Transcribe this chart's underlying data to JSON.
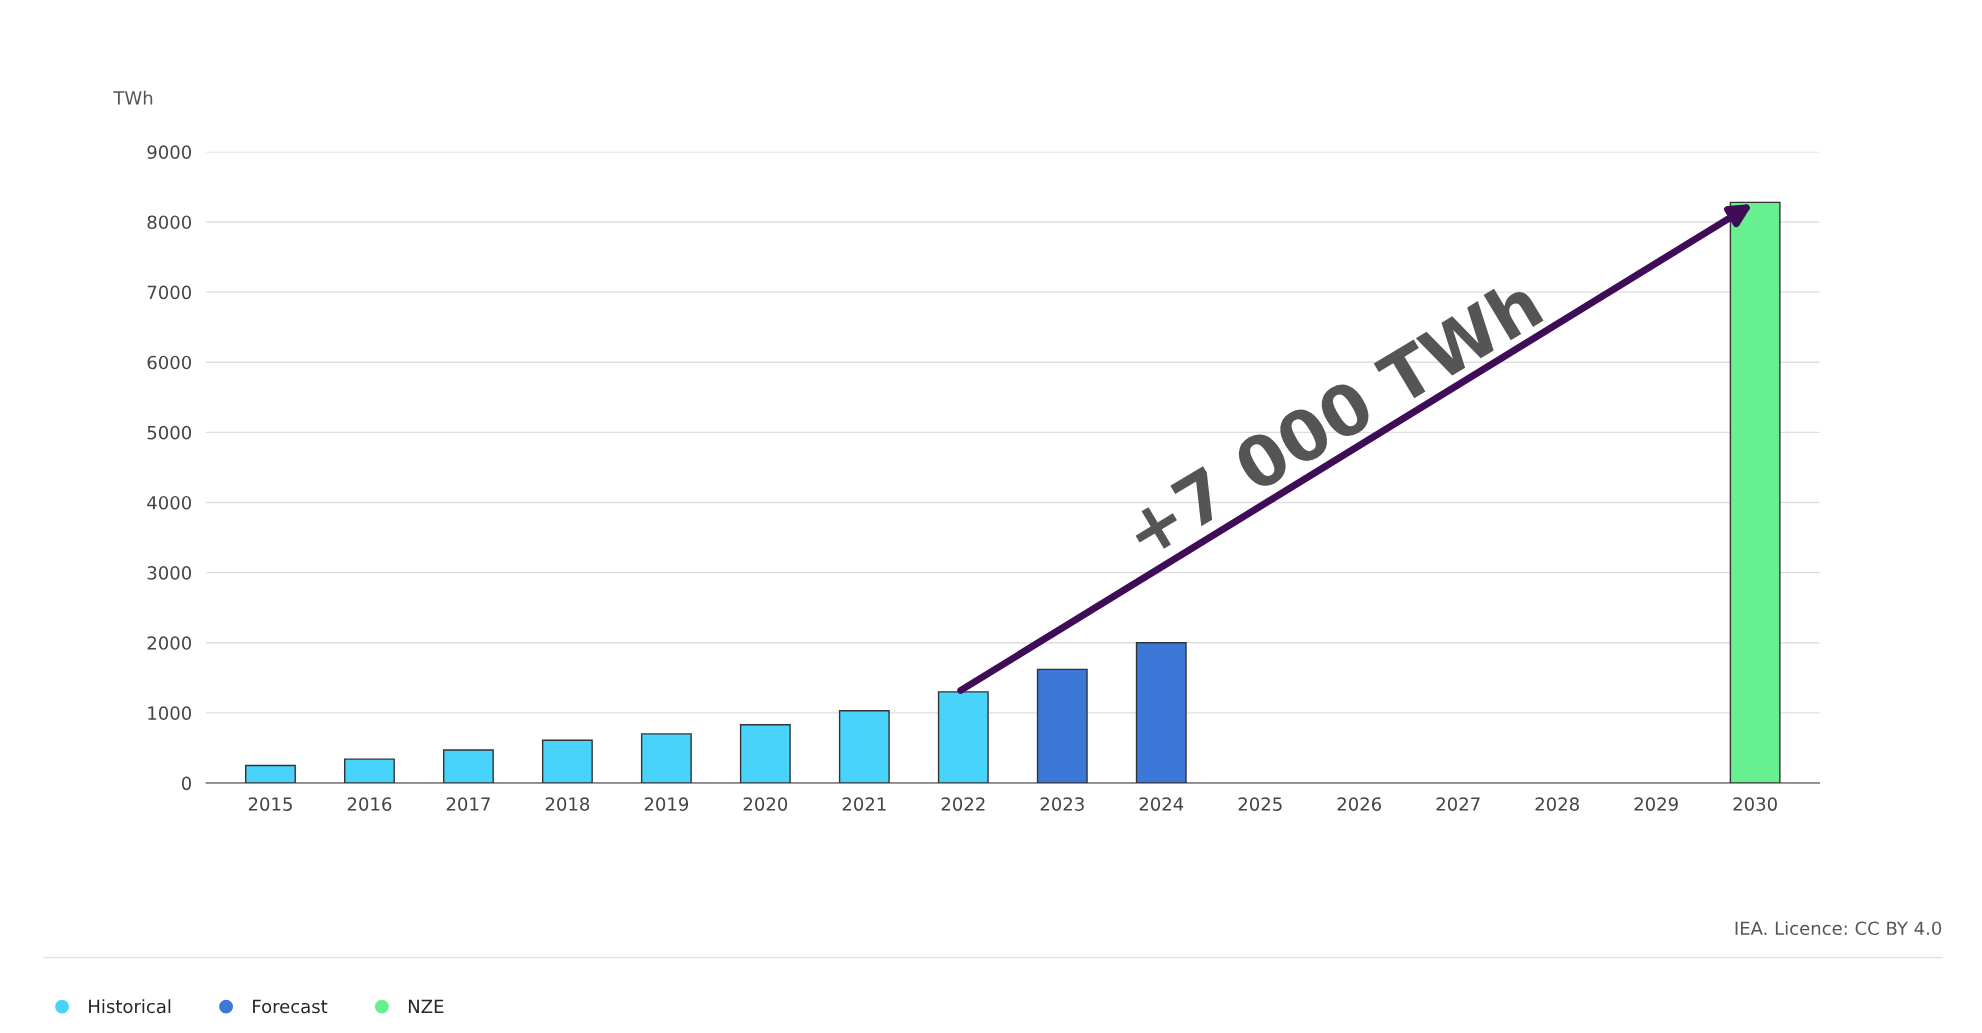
{
  "chart_data": {
    "type": "bar",
    "ylabel": "TWh",
    "categories": [
      "2015",
      "2016",
      "2017",
      "2018",
      "2019",
      "2020",
      "2021",
      "2022",
      "2023",
      "2024",
      "2025",
      "2026",
      "2027",
      "2028",
      "2029",
      "2030"
    ],
    "series": [
      {
        "name": "Historical",
        "color": "#48d3fb",
        "values": [
          250,
          340,
          470,
          610,
          700,
          830,
          1030,
          1300,
          null,
          null,
          null,
          null,
          null,
          null,
          null,
          null
        ]
      },
      {
        "name": "Forecast",
        "color": "#3c78d8",
        "values": [
          null,
          null,
          null,
          null,
          null,
          null,
          null,
          null,
          1620,
          2000,
          null,
          null,
          null,
          null,
          null,
          null
        ]
      },
      {
        "name": "NZE",
        "color": "#66f08f",
        "values": [
          null,
          null,
          null,
          null,
          null,
          null,
          null,
          null,
          null,
          null,
          null,
          null,
          null,
          null,
          null,
          8280
        ]
      }
    ],
    "ylim": [
      0,
      9000
    ],
    "yticks": [
      0,
      1000,
      2000,
      3000,
      4000,
      5000,
      6000,
      7000,
      8000,
      9000
    ],
    "grid": "y",
    "legend": "bottom left",
    "annotations": [
      "+7 000 TWh",
      "IEA. Licence: CC BY 4.0"
    ]
  }
}
